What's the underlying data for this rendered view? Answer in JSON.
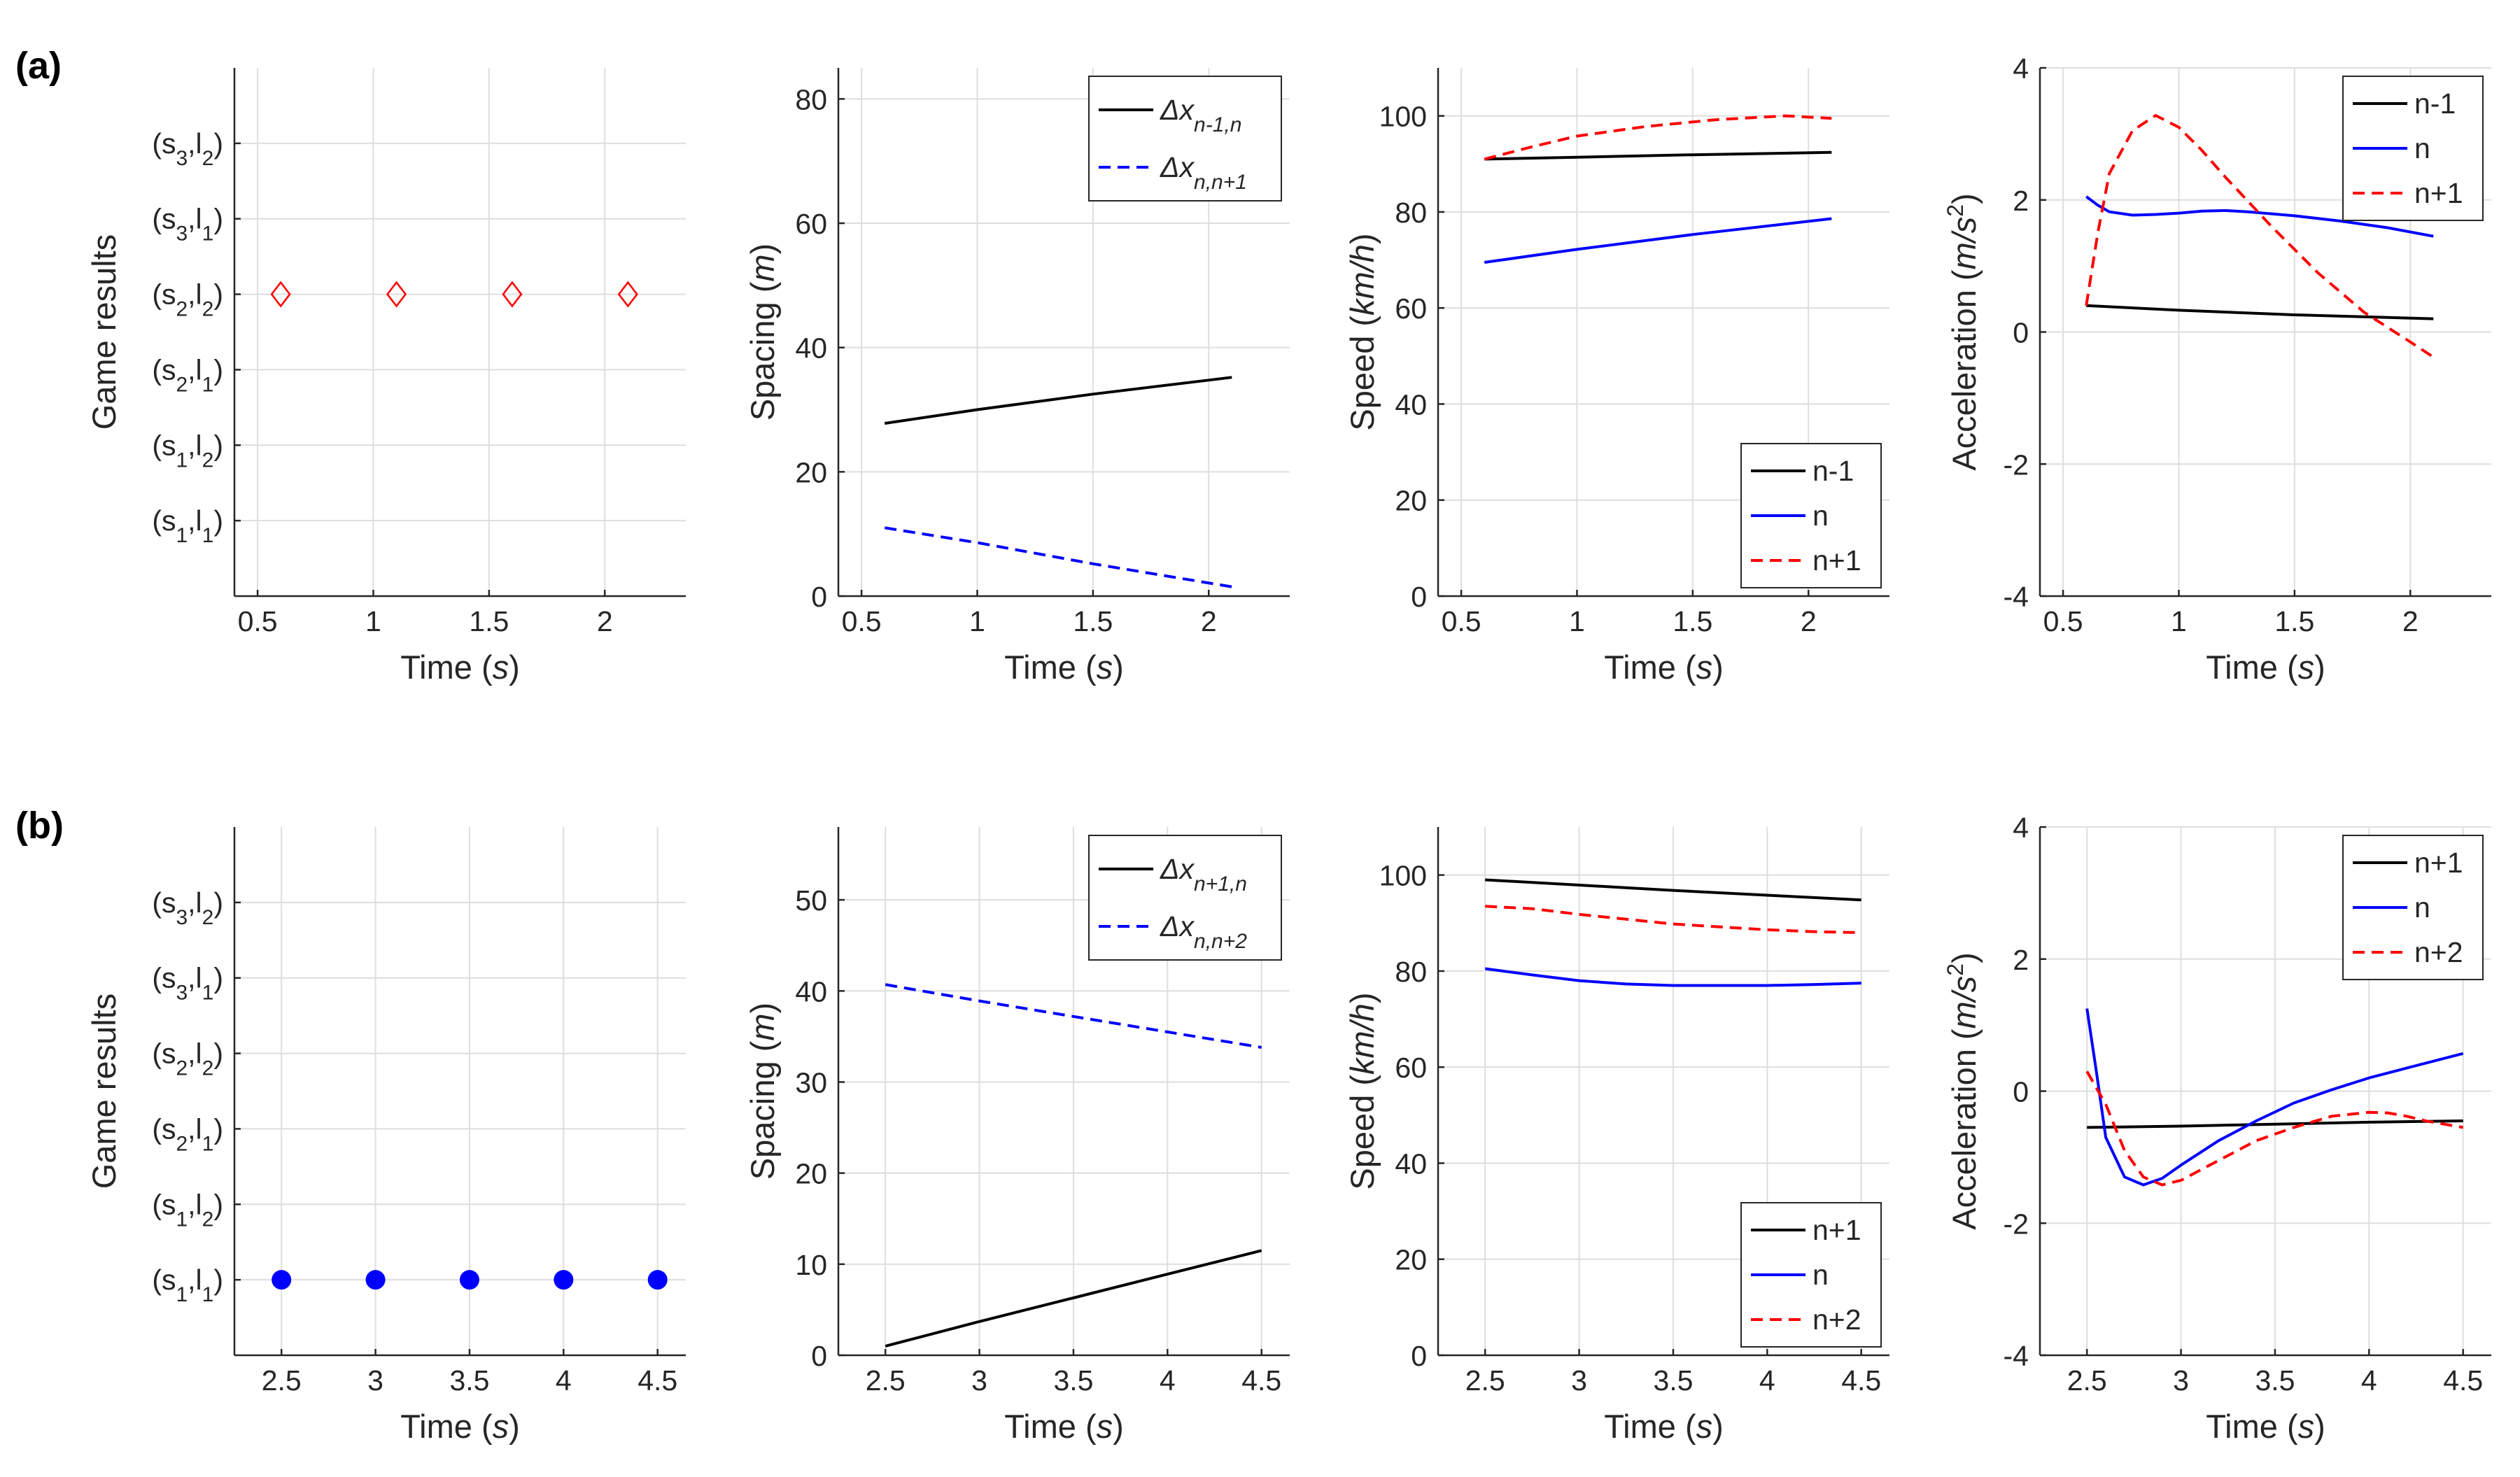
{
  "panel_labels": [
    "(a)",
    "(b)"
  ],
  "chart_data": [
    {
      "type": "scatter",
      "row": "a",
      "title": "",
      "xlabel": "Time",
      "xunit": "s",
      "ylabel": "Game results",
      "xlim": [
        0.4,
        2.35
      ],
      "ylim": [
        0,
        7
      ],
      "xticks": [
        0.5,
        1,
        1.5,
        2
      ],
      "xticklabels": [
        "0.5",
        "1",
        "1.5",
        "2"
      ],
      "yticks": [
        1,
        2,
        3,
        4,
        5,
        6
      ],
      "ycategories": [
        {
          "s": "1",
          "l": "1"
        },
        {
          "s": "1",
          "l": "2"
        },
        {
          "s": "2",
          "l": "1"
        },
        {
          "s": "2",
          "l": "2"
        },
        {
          "s": "3",
          "l": "1"
        },
        {
          "s": "3",
          "l": "2"
        }
      ],
      "series": [
        {
          "name": "game-result",
          "marker": "diamond",
          "color": "#ff0000",
          "x": [
            0.6,
            1.1,
            1.6,
            2.1
          ],
          "y": [
            4,
            4,
            4,
            4
          ]
        }
      ]
    },
    {
      "type": "line",
      "row": "a",
      "title": "",
      "xlabel": "Time",
      "xunit": "s",
      "ylabel": "Spacing",
      "yunit": "m",
      "xlim": [
        0.4,
        2.35
      ],
      "ylim": [
        0,
        85
      ],
      "xticks": [
        0.5,
        1,
        1.5,
        2
      ],
      "xticklabels": [
        "0.5",
        "1",
        "1.5",
        "2"
      ],
      "yticks": [
        0,
        20,
        40,
        60,
        80
      ],
      "yticklabels": [
        "0",
        "20",
        "40",
        "60",
        "80"
      ],
      "legend": "top-right",
      "series": [
        {
          "name": "Δx",
          "sub": "n-1,n",
          "color": "#000000",
          "dash": "solid",
          "x": [
            0.6,
            1.0,
            1.5,
            2.1
          ],
          "y": [
            27.8,
            30.0,
            32.5,
            35.2
          ]
        },
        {
          "name": "Δx",
          "sub": "n,n+1",
          "color": "#0000ff",
          "dash": "dashed",
          "x": [
            0.6,
            1.0,
            1.5,
            2.1
          ],
          "y": [
            11.0,
            8.6,
            5.2,
            1.5
          ]
        }
      ]
    },
    {
      "type": "line",
      "row": "a",
      "title": "",
      "xlabel": "Time",
      "xunit": "s",
      "ylabel": "Speed",
      "yunit": "km/h",
      "xlim": [
        0.4,
        2.35
      ],
      "ylim": [
        0,
        110
      ],
      "xticks": [
        0.5,
        1,
        1.5,
        2
      ],
      "xticklabels": [
        "0.5",
        "1",
        "1.5",
        "2"
      ],
      "yticks": [
        0,
        20,
        40,
        60,
        80,
        100
      ],
      "yticklabels": [
        "0",
        "20",
        "40",
        "60",
        "80",
        "100"
      ],
      "legend": "bottom-right",
      "series": [
        {
          "name": "n-1",
          "color": "#000000",
          "dash": "solid",
          "x": [
            0.6,
            1.0,
            1.5,
            2.1
          ],
          "y": [
            91.0,
            91.4,
            91.9,
            92.4
          ]
        },
        {
          "name": "n",
          "color": "#0000ff",
          "dash": "solid",
          "x": [
            0.6,
            1.0,
            1.5,
            2.1
          ],
          "y": [
            69.5,
            72.2,
            75.3,
            78.6
          ]
        },
        {
          "name": "n+1",
          "color": "#ff0000",
          "dash": "dashed",
          "x": [
            0.6,
            0.8,
            1.0,
            1.3,
            1.6,
            1.9,
            2.1
          ],
          "y": [
            91.0,
            93.5,
            95.8,
            97.8,
            99.2,
            100.0,
            99.5
          ]
        }
      ]
    },
    {
      "type": "line",
      "row": "a",
      "title": "",
      "xlabel": "Time",
      "xunit": "s",
      "ylabel": "Acceleration",
      "yunit": "m/s",
      "yunit_sup": "2",
      "xlim": [
        0.4,
        2.35
      ],
      "ylim": [
        -4,
        4
      ],
      "xticks": [
        0.5,
        1,
        1.5,
        2
      ],
      "xticklabels": [
        "0.5",
        "1",
        "1.5",
        "2"
      ],
      "yticks": [
        -4,
        -2,
        0,
        2,
        4
      ],
      "yticklabels": [
        "-4",
        "-2",
        "0",
        "2",
        "4"
      ],
      "legend": "top-right",
      "series": [
        {
          "name": "n-1",
          "color": "#000000",
          "dash": "solid",
          "x": [
            0.6,
            1.0,
            1.5,
            2.1
          ],
          "y": [
            0.4,
            0.33,
            0.26,
            0.2
          ]
        },
        {
          "name": "n",
          "color": "#0000ff",
          "dash": "solid",
          "x": [
            0.6,
            0.65,
            0.7,
            0.8,
            0.9,
            1.0,
            1.1,
            1.2,
            1.3,
            1.5,
            1.7,
            1.9,
            2.1
          ],
          "y": [
            2.05,
            1.92,
            1.82,
            1.77,
            1.78,
            1.8,
            1.83,
            1.84,
            1.82,
            1.76,
            1.68,
            1.58,
            1.45
          ]
        },
        {
          "name": "n+1",
          "color": "#ff0000",
          "dash": "dashed",
          "x": [
            0.6,
            0.65,
            0.7,
            0.8,
            0.9,
            1.0,
            1.1,
            1.2,
            1.4,
            1.6,
            1.8,
            2.0,
            2.1
          ],
          "y": [
            0.4,
            1.5,
            2.4,
            3.05,
            3.28,
            3.1,
            2.75,
            2.35,
            1.6,
            0.9,
            0.3,
            -0.15,
            -0.38
          ]
        }
      ]
    },
    {
      "type": "scatter",
      "row": "b",
      "title": "",
      "xlabel": "Time",
      "xunit": "s",
      "ylabel": "Game results",
      "xlim": [
        2.25,
        4.65
      ],
      "ylim": [
        0,
        7
      ],
      "xticks": [
        2.5,
        3,
        3.5,
        4,
        4.5
      ],
      "xticklabels": [
        "2.5",
        "3",
        "3.5",
        "4",
        "4.5"
      ],
      "yticks": [
        1,
        2,
        3,
        4,
        5,
        6
      ],
      "ycategories": [
        {
          "s": "1",
          "l": "1"
        },
        {
          "s": "1",
          "l": "2"
        },
        {
          "s": "2",
          "l": "1"
        },
        {
          "s": "2",
          "l": "2"
        },
        {
          "s": "3",
          "l": "1"
        },
        {
          "s": "3",
          "l": "2"
        }
      ],
      "series": [
        {
          "name": "game-result",
          "marker": "filled-circle",
          "color": "#0000ff",
          "x": [
            2.5,
            3.0,
            3.5,
            4.0,
            4.5
          ],
          "y": [
            1,
            1,
            1,
            1,
            1
          ]
        }
      ]
    },
    {
      "type": "line",
      "row": "b",
      "title": "",
      "xlabel": "Time",
      "xunit": "s",
      "ylabel": "Spacing",
      "yunit": "m",
      "xlim": [
        2.25,
        4.65
      ],
      "ylim": [
        0,
        58
      ],
      "xticks": [
        2.5,
        3,
        3.5,
        4,
        4.5
      ],
      "xticklabels": [
        "2.5",
        "3",
        "3.5",
        "4",
        "4.5"
      ],
      "yticks": [
        0,
        10,
        20,
        30,
        40,
        50
      ],
      "yticklabels": [
        "0",
        "10",
        "20",
        "30",
        "40",
        "50"
      ],
      "legend": "top-right",
      "series": [
        {
          "name": "Δx",
          "sub": "n+1,n",
          "color": "#000000",
          "dash": "solid",
          "x": [
            2.5,
            3.0,
            3.5,
            4.0,
            4.5
          ],
          "y": [
            1.0,
            3.7,
            6.3,
            8.9,
            11.5
          ]
        },
        {
          "name": "Δx",
          "sub": "n,n+2",
          "color": "#0000ff",
          "dash": "dashed",
          "x": [
            2.5,
            3.0,
            3.5,
            4.0,
            4.5
          ],
          "y": [
            40.7,
            38.9,
            37.2,
            35.5,
            33.8
          ]
        }
      ]
    },
    {
      "type": "line",
      "row": "b",
      "title": "",
      "xlabel": "Time",
      "xunit": "s",
      "ylabel": "Speed",
      "yunit": "km/h",
      "xlim": [
        2.25,
        4.65
      ],
      "ylim": [
        0,
        110
      ],
      "xticks": [
        2.5,
        3,
        3.5,
        4,
        4.5
      ],
      "xticklabels": [
        "2.5",
        "3",
        "3.5",
        "4",
        "4.5"
      ],
      "yticks": [
        0,
        20,
        40,
        60,
        80,
        100
      ],
      "yticklabels": [
        "0",
        "20",
        "40",
        "60",
        "80",
        "100"
      ],
      "legend": "bottom-right",
      "series": [
        {
          "name": "n+1",
          "color": "#000000",
          "dash": "solid",
          "x": [
            2.5,
            3.0,
            3.5,
            4.0,
            4.5
          ],
          "y": [
            99.0,
            97.9,
            96.8,
            95.8,
            94.8
          ]
        },
        {
          "name": "n",
          "color": "#0000ff",
          "dash": "solid",
          "x": [
            2.5,
            2.75,
            3.0,
            3.25,
            3.5,
            3.75,
            4.0,
            4.25,
            4.5
          ],
          "y": [
            80.5,
            79.2,
            78.0,
            77.3,
            77.0,
            77.0,
            77.0,
            77.2,
            77.5
          ]
        },
        {
          "name": "n+2",
          "color": "#ff0000",
          "dash": "dashed",
          "x": [
            2.5,
            2.75,
            3.0,
            3.25,
            3.5,
            3.75,
            4.0,
            4.25,
            4.5
          ],
          "y": [
            93.5,
            93.0,
            91.8,
            90.8,
            89.8,
            89.2,
            88.6,
            88.2,
            88.0
          ]
        }
      ]
    },
    {
      "type": "line",
      "row": "b",
      "title": "",
      "xlabel": "Time",
      "xunit": "s",
      "ylabel": "Acceleration",
      "yunit": "m/s",
      "yunit_sup": "2",
      "xlim": [
        2.25,
        4.65
      ],
      "ylim": [
        -4,
        4
      ],
      "xticks": [
        2.5,
        3,
        3.5,
        4,
        4.5
      ],
      "xticklabels": [
        "2.5",
        "3",
        "3.5",
        "4",
        "4.5"
      ],
      "yticks": [
        -4,
        -2,
        0,
        2,
        4
      ],
      "yticklabels": [
        "-4",
        "-2",
        "0",
        "2",
        "4"
      ],
      "legend": "top-right",
      "series": [
        {
          "name": "n+1",
          "color": "#000000",
          "dash": "solid",
          "x": [
            2.5,
            3.0,
            3.5,
            4.0,
            4.5
          ],
          "y": [
            -0.55,
            -0.53,
            -0.5,
            -0.47,
            -0.45
          ]
        },
        {
          "name": "n",
          "color": "#0000ff",
          "dash": "solid",
          "x": [
            2.5,
            2.55,
            2.6,
            2.7,
            2.8,
            2.9,
            3.0,
            3.2,
            3.4,
            3.6,
            3.8,
            4.0,
            4.2,
            4.5
          ],
          "y": [
            1.25,
            0.3,
            -0.7,
            -1.3,
            -1.42,
            -1.32,
            -1.12,
            -0.75,
            -0.45,
            -0.18,
            0.02,
            0.2,
            0.35,
            0.57
          ]
        },
        {
          "name": "n+2",
          "color": "#ff0000",
          "dash": "dashed",
          "x": [
            2.5,
            2.6,
            2.7,
            2.8,
            2.9,
            3.0,
            3.2,
            3.4,
            3.6,
            3.8,
            4.0,
            4.1,
            4.2,
            4.3,
            4.5
          ],
          "y": [
            0.3,
            -0.2,
            -0.9,
            -1.3,
            -1.42,
            -1.35,
            -1.05,
            -0.75,
            -0.55,
            -0.38,
            -0.32,
            -0.33,
            -0.38,
            -0.45,
            -0.55
          ]
        }
      ]
    }
  ]
}
